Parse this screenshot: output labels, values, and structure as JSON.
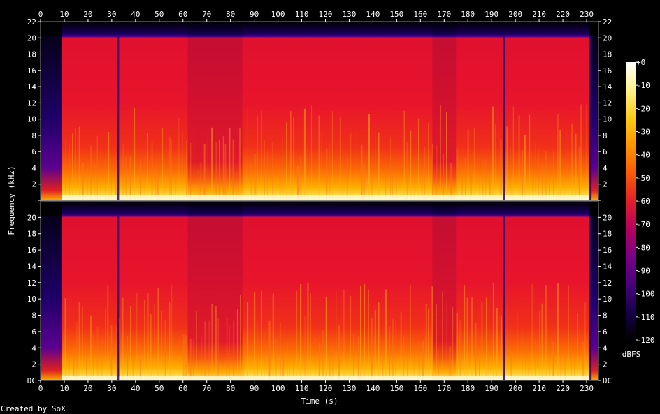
{
  "chart_data": {
    "type": "heatmap",
    "title": "",
    "xlabel": "Time (s)",
    "ylabel": "Frequency (kHz)",
    "xlim": [
      0,
      235
    ],
    "ylim": [
      0,
      22
    ],
    "x_ticks": [
      0,
      10,
      20,
      30,
      40,
      50,
      60,
      70,
      80,
      90,
      100,
      110,
      120,
      130,
      140,
      150,
      160,
      170,
      180,
      190,
      200,
      210,
      220,
      230
    ],
    "y_ticks": [
      {
        "value": 0,
        "label": "DC"
      },
      {
        "value": 2,
        "label": "2"
      },
      {
        "value": 4,
        "label": "4"
      },
      {
        "value": 6,
        "label": "6"
      },
      {
        "value": 8,
        "label": "8"
      },
      {
        "value": 10,
        "label": "10"
      },
      {
        "value": 12,
        "label": "12"
      },
      {
        "value": 14,
        "label": "14"
      },
      {
        "value": 16,
        "label": "16"
      },
      {
        "value": 18,
        "label": "18"
      },
      {
        "value": 20,
        "label": "20"
      },
      {
        "value": 22,
        "label": "22"
      }
    ],
    "channels": 2,
    "colorbar": {
      "unit": "dBFS",
      "range": [
        -120,
        0
      ],
      "ticks": [
        "+0",
        "-10",
        "-20",
        "-30",
        "-40",
        "-50",
        "-60",
        "-70",
        "-80",
        "-90",
        "-100",
        "-110",
        "-120"
      ],
      "colors": [
        "#000000",
        "#17004a",
        "#48007e",
        "#7a0085",
        "#b5005f",
        "#e2202a",
        "#fb5a06",
        "#ff9500",
        "#ffcb15",
        "#fff28a",
        "#ffffff"
      ]
    },
    "audio_start_s": 9,
    "audio_end_s": 231,
    "lowpass_cutoff_khz": 20.2,
    "quiet_dips_s": [
      32.5,
      195,
      231.5
    ],
    "quieter_sections_s": [
      [
        62,
        85
      ],
      [
        165,
        175
      ]
    ],
    "grid": false
  },
  "footer": {
    "credit": "Created by SoX"
  }
}
